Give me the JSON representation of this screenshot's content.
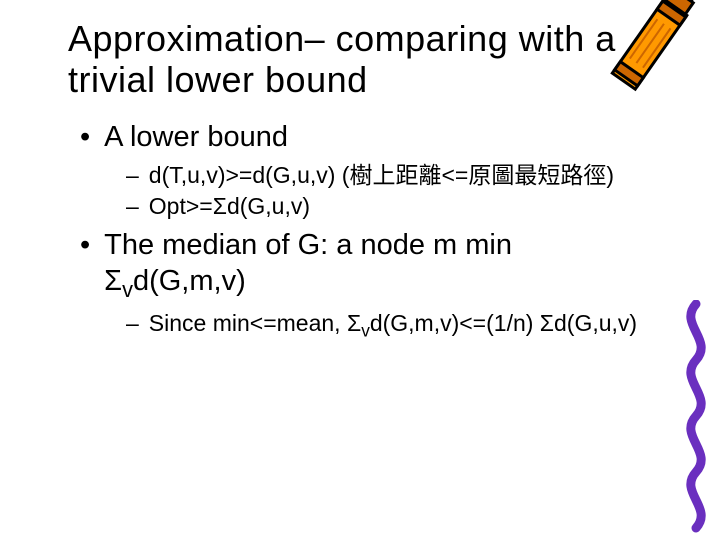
{
  "title": "Approximation– comparing with a trivial lower bound",
  "bullets": [
    {
      "text": "A lower bound",
      "sub": [
        {
          "text": "d(T,u,v)>=d(G,u,v)  (樹上距離<=原圖最短路徑)"
        },
        {
          "text": "Opt>=Σd(G,u,v)"
        }
      ]
    },
    {
      "text": "The median of G: a node m min Σ{sub}v{/sub}d(G,m,v)",
      "sub": [
        {
          "text": "Since min<=mean, Σ{sub}v{/sub}d(G,m,v)<=(1/n) Σd(G,u,v)"
        }
      ]
    }
  ],
  "styling": {
    "background_color": "#ffffff",
    "text_color": "#000000",
    "font_family": "Comic Sans MS",
    "title_fontsize": 36,
    "lvl1_fontsize": 29,
    "lvl2_fontsize": 23,
    "bullet_char": "•",
    "dash_char": "–",
    "crayon_body_color": "#ff9900",
    "crayon_band_color": "#cc6600",
    "crayon_outline_color": "#000000",
    "scribble_color": "#6a2fbf"
  }
}
